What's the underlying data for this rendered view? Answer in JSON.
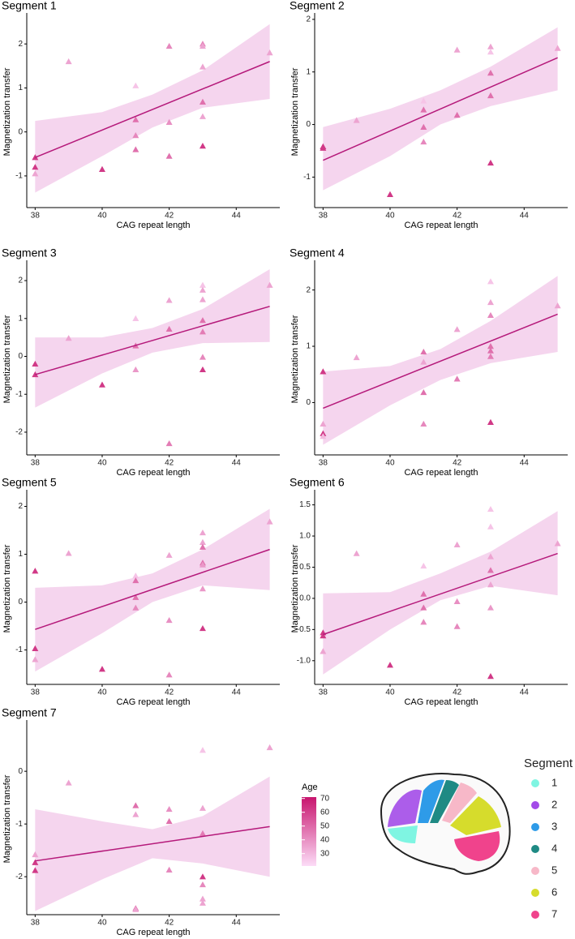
{
  "chart_data": [
    {
      "type": "scatter",
      "title": "Segment 1",
      "xlabel": "CAG repeat length",
      "ylabel": "Magnetization transfer",
      "x": [
        38,
        38,
        38,
        39,
        40,
        41,
        41,
        41,
        41,
        42,
        42,
        42,
        43,
        43,
        43,
        43,
        43,
        43,
        45
      ],
      "y": [
        -0.58,
        -0.8,
        -0.95,
        1.6,
        -0.85,
        1.05,
        0.28,
        -0.08,
        -0.4,
        1.95,
        0.22,
        -0.55,
        2.0,
        1.95,
        1.48,
        0.68,
        0.35,
        -0.32,
        1.8
      ],
      "age": [
        62,
        62,
        35,
        35,
        62,
        27,
        48,
        42,
        48,
        42,
        40,
        48,
        42,
        35,
        35,
        48,
        35,
        62,
        35
      ],
      "fit": {
        "x": [
          38,
          45
        ],
        "y": [
          -0.58,
          1.6
        ]
      },
      "band": {
        "x": [
          38,
          40,
          41.5,
          43,
          45
        ],
        "lower": [
          -1.38,
          -0.55,
          0.1,
          0.55,
          0.75
        ],
        "upper": [
          0.25,
          0.45,
          0.85,
          1.4,
          2.45
        ]
      },
      "xlim": [
        37.75,
        45.3
      ],
      "xticks": [
        38,
        40,
        42,
        44
      ],
      "ylim": [
        -1.72,
        2.63
      ],
      "yticks": [
        -1,
        0,
        1,
        2
      ],
      "line_color": "#b5197a",
      "band_color": "#f5d5ee"
    },
    {
      "type": "scatter",
      "title": "Segment 2",
      "xlabel": "CAG repeat length",
      "ylabel": "Magnetization transfer",
      "x": [
        38,
        38,
        39,
        40,
        41,
        41,
        41,
        41,
        42,
        42,
        43,
        43,
        43,
        43,
        43,
        45
      ],
      "y": [
        -0.42,
        -0.45,
        0.08,
        -1.33,
        0.45,
        0.28,
        -0.05,
        -0.33,
        1.42,
        0.18,
        1.48,
        1.38,
        0.98,
        0.55,
        -0.73,
        1.45
      ],
      "age": [
        62,
        62,
        35,
        62,
        27,
        48,
        48,
        42,
        35,
        48,
        35,
        27,
        48,
        48,
        62,
        35
      ],
      "fit": {
        "x": [
          38,
          45
        ],
        "y": [
          -0.68,
          1.27
        ]
      },
      "band": {
        "x": [
          38,
          40,
          41.5,
          43,
          45
        ],
        "lower": [
          -1.25,
          -0.6,
          0,
          0.35,
          0.65
        ],
        "upper": [
          -0.05,
          0.3,
          0.65,
          1.1,
          1.85
        ]
      },
      "xlim": [
        37.75,
        45.3
      ],
      "xticks": [
        38,
        40,
        42,
        44
      ],
      "ylim": [
        -1.58,
        2.06
      ],
      "yticks": [
        -1,
        0,
        1,
        2
      ],
      "line_color": "#b5197a",
      "band_color": "#f5d5ee"
    },
    {
      "type": "scatter",
      "title": "Segment 3",
      "xlabel": "CAG repeat length",
      "ylabel": "Magnetization transfer",
      "x": [
        38,
        38,
        39,
        40,
        41,
        41,
        41,
        42,
        42,
        42,
        43,
        43,
        43,
        43,
        43,
        43,
        43,
        45
      ],
      "y": [
        -0.2,
        -0.48,
        0.48,
        -0.75,
        1.0,
        0.28,
        -0.35,
        1.48,
        0.72,
        -2.3,
        1.88,
        1.75,
        1.5,
        0.95,
        0.65,
        -0.02,
        -0.35,
        1.88
      ],
      "age": [
        62,
        62,
        35,
        62,
        27,
        48,
        38,
        35,
        48,
        45,
        27,
        35,
        35,
        48,
        45,
        42,
        62,
        35
      ],
      "fit": {
        "x": [
          38,
          45
        ],
        "y": [
          -0.48,
          1.32
        ]
      },
      "band": {
        "x": [
          38,
          40,
          41.5,
          43,
          45
        ],
        "lower": [
          -1.35,
          -0.45,
          0.1,
          0.35,
          0.38
        ],
        "upper": [
          0.5,
          0.5,
          0.75,
          1.25,
          2.3
        ]
      },
      "xlim": [
        37.75,
        45.3
      ],
      "xticks": [
        38,
        40,
        42,
        44
      ],
      "ylim": [
        -2.6,
        2.45
      ],
      "yticks": [
        -2,
        -1,
        0,
        1,
        2
      ],
      "line_color": "#b5197a",
      "band_color": "#f5d5ee"
    },
    {
      "type": "scatter",
      "title": "Segment 4",
      "xlabel": "CAG repeat length",
      "ylabel": "Magnetization transfer",
      "x": [
        38,
        38,
        38,
        38,
        39,
        41,
        41,
        41,
        41,
        42,
        42,
        43,
        43,
        43,
        43,
        43,
        43,
        43,
        45
      ],
      "y": [
        0.55,
        -0.38,
        -0.55,
        -0.6,
        0.8,
        0.9,
        0.72,
        0.18,
        -0.38,
        1.3,
        0.42,
        2.15,
        1.78,
        1.55,
        1.0,
        0.92,
        0.82,
        -0.35,
        1.72
      ],
      "age": [
        62,
        35,
        62,
        30,
        35,
        48,
        35,
        48,
        42,
        35,
        45,
        27,
        35,
        42,
        48,
        48,
        45,
        62,
        35
      ],
      "fit": {
        "x": [
          38,
          45
        ],
        "y": [
          -0.1,
          1.57
        ]
      },
      "band": {
        "x": [
          38,
          40,
          41.5,
          43,
          45
        ],
        "lower": [
          -0.75,
          -0.05,
          0.4,
          0.7,
          0.9
        ],
        "upper": [
          0.55,
          0.65,
          0.95,
          1.45,
          2.25
        ]
      },
      "xlim": [
        37.75,
        45.3
      ],
      "xticks": [
        38,
        40,
        42,
        44
      ],
      "ylim": [
        -0.93,
        2.47
      ],
      "yticks": [
        0,
        1,
        2
      ],
      "line_color": "#b5197a",
      "band_color": "#f5d5ee"
    },
    {
      "type": "scatter",
      "title": "Segment 5",
      "xlabel": "CAG repeat length",
      "ylabel": "Magnetization transfer",
      "x": [
        38,
        38,
        38,
        39,
        40,
        41,
        41,
        41,
        41,
        42,
        42,
        42,
        43,
        43,
        43,
        43,
        43,
        43,
        43,
        45
      ],
      "y": [
        0.65,
        -0.97,
        -1.2,
        1.02,
        -1.4,
        0.55,
        0.45,
        0.1,
        -0.12,
        0.98,
        -0.38,
        -1.52,
        1.45,
        1.25,
        1.15,
        0.82,
        0.78,
        0.28,
        -0.55,
        1.68
      ],
      "age": [
        62,
        62,
        35,
        35,
        62,
        27,
        48,
        48,
        42,
        35,
        40,
        42,
        35,
        35,
        48,
        48,
        38,
        38,
        62,
        35
      ],
      "fit": {
        "x": [
          38,
          45
        ],
        "y": [
          -0.57,
          1.1
        ]
      },
      "band": {
        "x": [
          38,
          40,
          41.5,
          43,
          45
        ],
        "lower": [
          -1.45,
          -0.65,
          0,
          0.35,
          0.25
        ],
        "upper": [
          0.3,
          0.35,
          0.6,
          1.1,
          1.95
        ]
      },
      "xlim": [
        37.75,
        45.3
      ],
      "xticks": [
        38,
        40,
        42,
        44
      ],
      "ylim": [
        -1.72,
        2.28
      ],
      "yticks": [
        -1,
        0,
        1,
        2
      ],
      "line_color": "#b5197a",
      "band_color": "#f5d5ee"
    },
    {
      "type": "scatter",
      "title": "Segment 6",
      "xlabel": "CAG repeat length",
      "ylabel": "Magnetization transfer",
      "x": [
        38,
        38,
        38,
        39,
        40,
        41,
        41,
        41,
        41,
        42,
        42,
        42,
        43,
        43,
        43,
        43,
        43,
        43,
        43,
        45
      ],
      "y": [
        -0.55,
        -0.6,
        -0.85,
        0.72,
        -1.07,
        0.52,
        0.07,
        -0.15,
        -0.38,
        0.86,
        -0.05,
        -0.45,
        1.43,
        1.15,
        0.67,
        0.45,
        0.22,
        -0.15,
        -1.25,
        0.88
      ],
      "age": [
        62,
        62,
        35,
        35,
        62,
        27,
        48,
        48,
        42,
        35,
        40,
        42,
        27,
        27,
        35,
        48,
        35,
        38,
        62,
        35
      ],
      "fit": {
        "x": [
          38,
          45
        ],
        "y": [
          -0.58,
          0.72
        ]
      },
      "band": {
        "x": [
          38,
          40,
          41.5,
          43,
          45
        ],
        "lower": [
          -1.22,
          -0.5,
          -0.03,
          0.2,
          0.05
        ],
        "upper": [
          0.08,
          0.1,
          0.4,
          0.75,
          1.4
        ]
      },
      "xlim": [
        37.75,
        45.3
      ],
      "xticks": [
        38,
        40,
        42,
        44
      ],
      "ylim": [
        -1.38,
        1.69
      ],
      "yticks": [
        {
          "value": -1,
          "label": "-1.0"
        },
        {
          "value": -0.5,
          "label": "-0.5"
        },
        {
          "value": 0,
          "label": "0.0"
        },
        {
          "value": 0.5,
          "label": "0.5"
        },
        {
          "value": 1,
          "label": "1.0"
        },
        {
          "value": 1.5,
          "label": "1.5"
        }
      ],
      "line_color": "#b5197a",
      "band_color": "#f5d5ee"
    },
    {
      "type": "scatter",
      "title": "Segment 7",
      "xlabel": "CAG repeat length",
      "ylabel": "Magnetization transfer",
      "x": [
        38,
        38,
        38,
        39,
        41,
        41,
        41,
        41,
        42,
        42,
        42,
        43,
        43,
        43,
        43,
        43,
        43,
        43,
        45
      ],
      "y": [
        -1.58,
        -1.73,
        -1.88,
        -0.22,
        -0.65,
        -0.82,
        -2.6,
        -2.62,
        -0.72,
        -0.95,
        -1.87,
        0.4,
        -0.7,
        -1.18,
        -2.0,
        -2.15,
        -2.42,
        -2.5,
        0.45
      ],
      "age": [
        35,
        62,
        62,
        35,
        48,
        35,
        48,
        35,
        40,
        48,
        42,
        27,
        35,
        45,
        62,
        42,
        35,
        35,
        35
      ],
      "fit": {
        "x": [
          38,
          45
        ],
        "y": [
          -1.7,
          -1.05
        ]
      },
      "band": {
        "x": [
          38,
          40,
          41.5,
          43,
          45
        ],
        "lower": [
          -2.65,
          -2.05,
          -1.65,
          -1.75,
          -2.0
        ],
        "upper": [
          -0.72,
          -0.95,
          -1.1,
          -0.85,
          -0.1
        ]
      },
      "xlim": [
        37.75,
        45.3
      ],
      "xticks": [
        38,
        40,
        42,
        44
      ],
      "ylim": [
        -2.72,
        0.91
      ],
      "yticks": [
        -2,
        -1,
        0
      ],
      "line_color": "#b5197a",
      "band_color": "#f5d5ee"
    }
  ],
  "age_legend": {
    "title": "Age",
    "ticks": [
      30,
      40,
      50,
      60,
      70
    ],
    "lim": [
      21,
      71
    ],
    "colors": [
      "#fcdcf7",
      "#c8156e"
    ]
  },
  "segment_legend": {
    "title": "Segment",
    "items": [
      {
        "label": "1",
        "color": "#7ff5e2"
      },
      {
        "label": "2",
        "color": "#a34be8"
      },
      {
        "label": "3",
        "color": "#2e9be8"
      },
      {
        "label": "4",
        "color": "#1f8a84"
      },
      {
        "label": "5",
        "color": "#f7b8c8"
      },
      {
        "label": "6",
        "color": "#d6dc2c"
      },
      {
        "label": "7",
        "color": "#f0438c"
      }
    ]
  }
}
